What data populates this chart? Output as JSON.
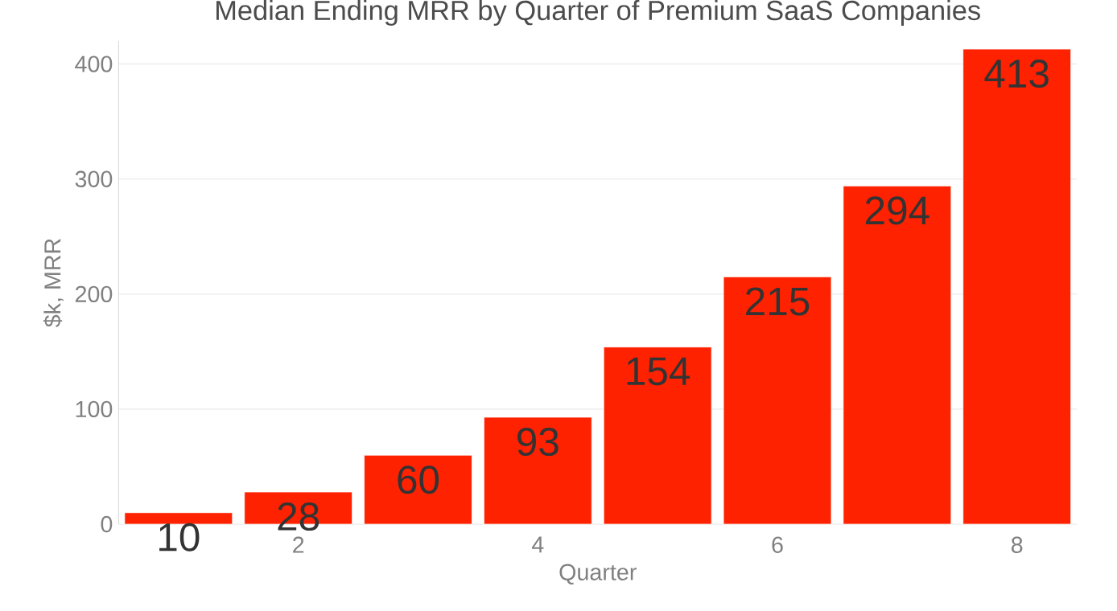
{
  "chart_data": {
    "type": "bar",
    "title": "Median Ending MRR by Quarter of Premium SaaS Companies",
    "xlabel": "Quarter",
    "ylabel": "$k, MRR",
    "x": [
      1,
      2,
      3,
      4,
      5,
      6,
      7,
      8
    ],
    "values": [
      10,
      28,
      60,
      93,
      154,
      215,
      294,
      413
    ],
    "color": "#ff2200",
    "data_labels": true,
    "xlim": [
      0.5,
      8.5
    ],
    "xticks": [
      2,
      4,
      6,
      8
    ],
    "ylim": [
      0,
      420
    ],
    "yticks": [
      0,
      100,
      200,
      300,
      400
    ],
    "grid": "y"
  }
}
